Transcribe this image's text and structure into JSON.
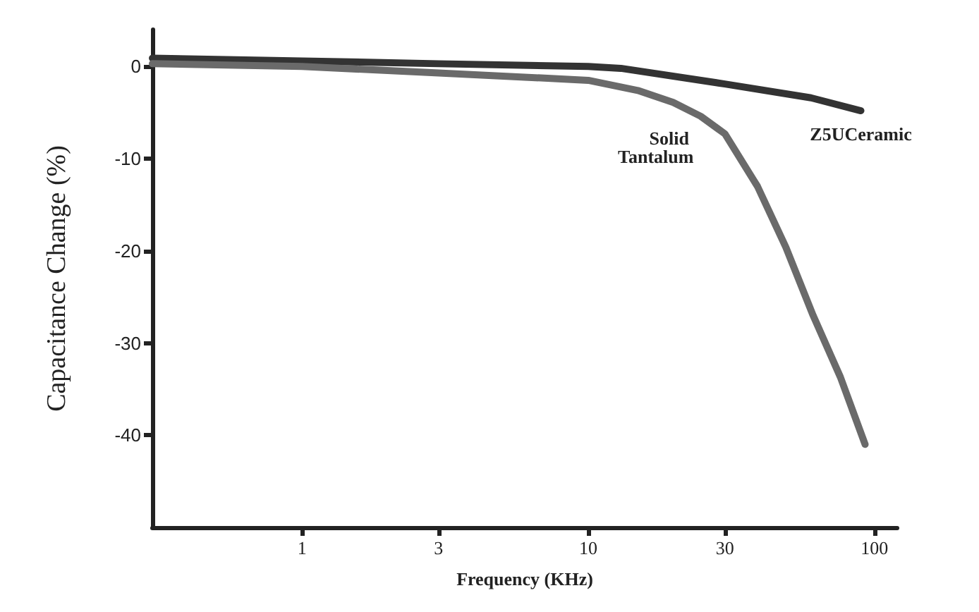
{
  "chart_data": {
    "type": "line",
    "xlabel": "Frequency (KHz)",
    "ylabel": "Capacitance Change (%)",
    "log": "x",
    "xlim": [
      0.3,
      120
    ],
    "xticks": [
      1,
      3,
      10,
      30,
      100
    ],
    "ylim": [
      -50,
      4
    ],
    "yticks": [
      0,
      -10,
      -20,
      -30,
      -40
    ],
    "grid": false,
    "legend": false,
    "marker": "none",
    "line_style": "solid",
    "series": [
      {
        "name": "Z5UCeramic",
        "color": "#333333",
        "x": [
          0.3,
          1,
          3,
          10,
          13,
          30,
          60,
          89.6
        ],
        "values": [
          0.9,
          0.6,
          0.3,
          0,
          -0.2,
          -1.9,
          -3.4,
          -4.8
        ]
      },
      {
        "name": "Solid Tantalum",
        "color": "#6a6a6a",
        "x": [
          0.3,
          1,
          3,
          10,
          14.9,
          19.8,
          24.7,
          30,
          39,
          49,
          61,
          76,
          92.7
        ],
        "values": [
          0.3,
          0,
          -0.7,
          -1.5,
          -2.6,
          -3.9,
          -5.4,
          -7.3,
          -13,
          -19.6,
          -27,
          -33.7,
          -41
        ]
      }
    ]
  }
}
